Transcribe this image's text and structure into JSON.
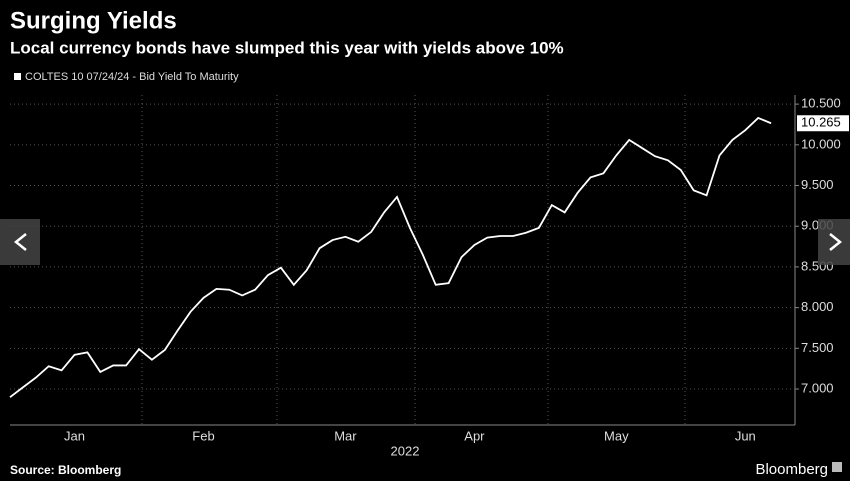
{
  "chart_data": {
    "type": "line",
    "title": "Surging Yields",
    "subtitle": "Local currency bonds have slumped this year with yields above 10%",
    "source": "Source: Bloomberg",
    "brand": "Bloomberg",
    "xlabel": "2022",
    "categories": [
      null,
      null,
      null,
      null,
      null,
      "Jan",
      null,
      null,
      null,
      null,
      null,
      null,
      null,
      null,
      null,
      "Feb",
      null,
      null,
      null,
      null,
      null,
      null,
      null,
      null,
      null,
      null,
      "Mar",
      null,
      null,
      null,
      null,
      null,
      null,
      null,
      null,
      null,
      "Apr",
      null,
      null,
      null,
      null,
      null,
      null,
      null,
      null,
      null,
      null,
      "May",
      null,
      null,
      null,
      null,
      null,
      null,
      null,
      null,
      null,
      "Jun",
      null,
      null
    ],
    "series": [
      {
        "name": "COLTES 10 07/24/24 - Bid Yield To Maturity",
        "color": "#ffffff",
        "values": [
          6.9,
          7.02,
          7.14,
          7.28,
          7.23,
          7.42,
          7.45,
          7.21,
          7.29,
          7.29,
          7.49,
          7.36,
          7.48,
          7.72,
          7.95,
          8.12,
          8.23,
          8.22,
          8.15,
          8.22,
          8.4,
          8.49,
          8.28,
          8.46,
          8.73,
          8.83,
          8.87,
          8.81,
          8.93,
          9.17,
          9.36,
          8.98,
          8.65,
          8.28,
          8.3,
          8.62,
          8.77,
          8.86,
          8.88,
          8.88,
          8.92,
          8.98,
          9.26,
          9.17,
          9.41,
          9.6,
          9.65,
          9.87,
          10.06,
          9.96,
          9.86,
          9.81,
          9.69,
          9.44,
          9.38,
          9.87,
          10.06,
          10.18,
          10.33,
          10.265
        ]
      }
    ],
    "ylim": [
      6.558,
      10.612
    ],
    "yticks": [
      {
        "value": 7.0,
        "label": "7.000"
      },
      {
        "value": 7.5,
        "label": "7.500"
      },
      {
        "value": 8.0,
        "label": "8.000"
      },
      {
        "value": 8.5,
        "label": "8.500"
      },
      {
        "value": 9.0,
        "label": "9.000"
      },
      {
        "value": 9.5,
        "label": "9.500"
      },
      {
        "value": 10.0,
        "label": "10.000"
      },
      {
        "value": 10.5,
        "label": "10.500"
      }
    ],
    "grid": true
  }
}
